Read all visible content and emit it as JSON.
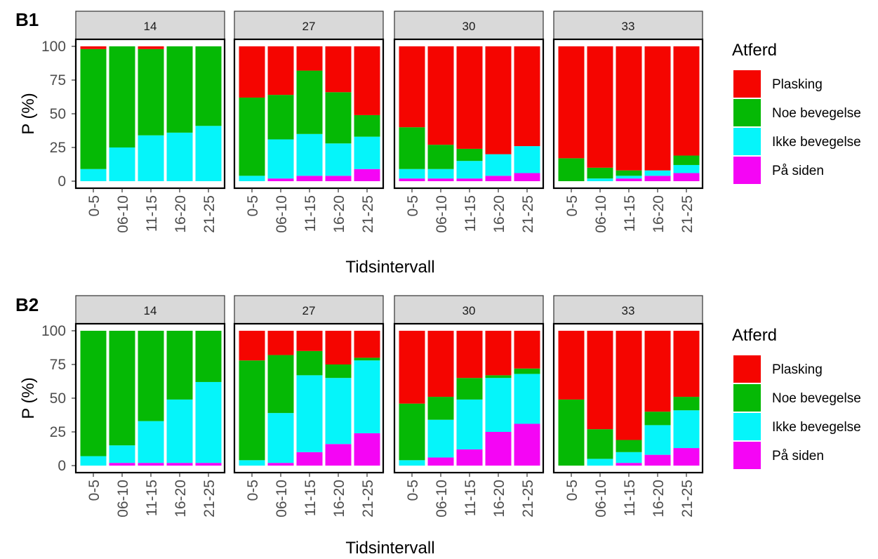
{
  "colors": {
    "Plasking": "#f50500",
    "Noe bevegelse": "#05b905",
    "Ikke bevegelse": "#05f5fa",
    "På siden": "#f505f5",
    "strip_fill": "#d9d9d9",
    "panel_border": "#000000",
    "strip_border": "#333333",
    "tick_text": "#4d4d4d"
  },
  "chart_data": [
    {
      "type": "bar",
      "stacked": true,
      "label": "B1",
      "xlabel": "Tidsintervall",
      "ylabel": "P (%)",
      "ylim": [
        0,
        100
      ],
      "yticks": [
        0,
        25,
        50,
        75,
        100
      ],
      "legend": {
        "title": "Atferd",
        "placement": "right",
        "entries": [
          "Plasking",
          "Noe bevegelse",
          "Ikke bevegelse",
          "På siden"
        ]
      },
      "categories": [
        "0-5",
        "06-10",
        "11-15",
        "16-20",
        "21-25"
      ],
      "facets": [
        {
          "strip": "14",
          "series": [
            {
              "name": "På siden",
              "values": [
                0,
                0,
                0,
                0,
                0
              ]
            },
            {
              "name": "Ikke bevegelse",
              "values": [
                9,
                25,
                34,
                36,
                41
              ]
            },
            {
              "name": "Noe bevegelse",
              "values": [
                89,
                75,
                64,
                64,
                59
              ]
            },
            {
              "name": "Plasking",
              "values": [
                2,
                0,
                2,
                0,
                0
              ]
            }
          ]
        },
        {
          "strip": "27",
          "series": [
            {
              "name": "På siden",
              "values": [
                0,
                2,
                4,
                4,
                9
              ]
            },
            {
              "name": "Ikke bevegelse",
              "values": [
                4,
                29,
                31,
                24,
                24
              ]
            },
            {
              "name": "Noe bevegelse",
              "values": [
                58,
                33,
                47,
                38,
                16
              ]
            },
            {
              "name": "Plasking",
              "values": [
                38,
                36,
                18,
                34,
                51
              ]
            }
          ]
        },
        {
          "strip": "30",
          "series": [
            {
              "name": "På siden",
              "values": [
                2,
                2,
                2,
                4,
                6
              ]
            },
            {
              "name": "Ikke bevegelse",
              "values": [
                7,
                7,
                13,
                16,
                20
              ]
            },
            {
              "name": "Noe bevegelse",
              "values": [
                31,
                18,
                9,
                0,
                0
              ]
            },
            {
              "name": "Plasking",
              "values": [
                60,
                73,
                76,
                80,
                74
              ]
            }
          ]
        },
        {
          "strip": "33",
          "series": [
            {
              "name": "På siden",
              "values": [
                0,
                0,
                2,
                4,
                6
              ]
            },
            {
              "name": "Ikke bevegelse",
              "values": [
                0,
                2,
                2,
                4,
                6
              ]
            },
            {
              "name": "Noe bevegelse",
              "values": [
                17,
                8,
                4,
                0,
                7
              ]
            },
            {
              "name": "Plasking",
              "values": [
                83,
                90,
                92,
                92,
                81
              ]
            }
          ]
        }
      ]
    },
    {
      "type": "bar",
      "stacked": true,
      "label": "B2",
      "xlabel": "Tidsintervall",
      "ylabel": "P (%)",
      "ylim": [
        0,
        100
      ],
      "yticks": [
        0,
        25,
        50,
        75,
        100
      ],
      "legend": {
        "title": "Atferd",
        "placement": "right",
        "entries": [
          "Plasking",
          "Noe bevegelse",
          "Ikke bevegelse",
          "På siden"
        ]
      },
      "categories": [
        "0-5",
        "06-10",
        "11-15",
        "16-20",
        "21-25"
      ],
      "facets": [
        {
          "strip": "14",
          "series": [
            {
              "name": "På siden",
              "values": [
                0,
                2,
                2,
                2,
                2
              ]
            },
            {
              "name": "Ikke bevegelse",
              "values": [
                7,
                13,
                31,
                47,
                60
              ]
            },
            {
              "name": "Noe bevegelse",
              "values": [
                93,
                85,
                67,
                51,
                38
              ]
            },
            {
              "name": "Plasking",
              "values": [
                0,
                0,
                0,
                0,
                0
              ]
            }
          ]
        },
        {
          "strip": "27",
          "series": [
            {
              "name": "På siden",
              "values": [
                0,
                2,
                10,
                16,
                24
              ]
            },
            {
              "name": "Ikke bevegelse",
              "values": [
                4,
                37,
                57,
                49,
                54
              ]
            },
            {
              "name": "Noe bevegelse",
              "values": [
                74,
                43,
                18,
                10,
                2
              ]
            },
            {
              "name": "Plasking",
              "values": [
                22,
                18,
                15,
                25,
                20
              ]
            }
          ]
        },
        {
          "strip": "30",
          "series": [
            {
              "name": "På siden",
              "values": [
                0,
                6,
                12,
                25,
                31
              ]
            },
            {
              "name": "Ikke bevegelse",
              "values": [
                4,
                28,
                37,
                40,
                37
              ]
            },
            {
              "name": "Noe bevegelse",
              "values": [
                42,
                17,
                16,
                2,
                4
              ]
            },
            {
              "name": "Plasking",
              "values": [
                54,
                49,
                35,
                33,
                28
              ]
            }
          ]
        },
        {
          "strip": "33",
          "series": [
            {
              "name": "På siden",
              "values": [
                0,
                0,
                2,
                8,
                13
              ]
            },
            {
              "name": "Ikke bevegelse",
              "values": [
                0,
                5,
                8,
                22,
                28
              ]
            },
            {
              "name": "Noe bevegelse",
              "values": [
                49,
                22,
                9,
                10,
                10
              ]
            },
            {
              "name": "Plasking",
              "values": [
                51,
                73,
                81,
                60,
                49
              ]
            }
          ]
        }
      ]
    }
  ]
}
